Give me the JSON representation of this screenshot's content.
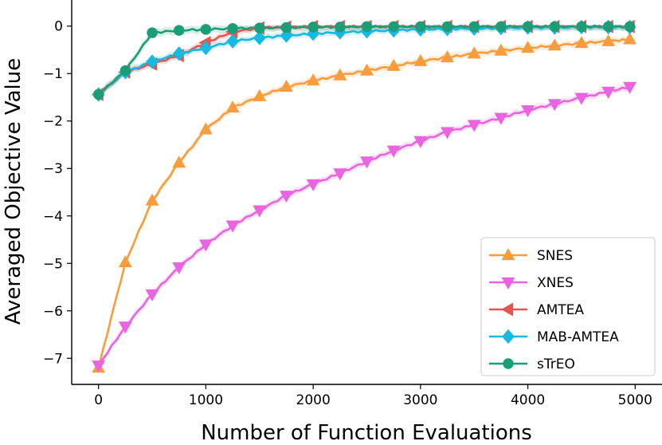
{
  "chart_data": {
    "type": "line",
    "xlabel": "Number of Function Evaluations",
    "ylabel": "Averaged Objective Value",
    "xlim": [
      -250,
      5250
    ],
    "ylim": [
      -7.55,
      0.55
    ],
    "xticks": [
      0,
      1000,
      2000,
      3000,
      4000,
      5000
    ],
    "yticks": [
      0,
      -1,
      -2,
      -3,
      -4,
      -5,
      -6,
      -7
    ],
    "ytick_labels": [
      "0",
      "−1",
      "−2",
      "−3",
      "−4",
      "−5",
      "−6",
      "−7"
    ],
    "grid": false,
    "legend_position": "lower-right",
    "x": [
      0,
      250,
      500,
      750,
      1000,
      1250,
      1500,
      1750,
      2000,
      2250,
      2500,
      2750,
      3000,
      3250,
      3500,
      3750,
      4000,
      4250,
      4500,
      4750,
      4950
    ],
    "series": [
      {
        "name": "SNES",
        "color": "#f89c3c",
        "marker": "triangle-up",
        "values": [
          -7.2,
          -4.98,
          -3.68,
          -2.88,
          -2.18,
          -1.72,
          -1.48,
          -1.28,
          -1.15,
          -1.04,
          -0.94,
          -0.84,
          -0.74,
          -0.66,
          -0.58,
          -0.52,
          -0.46,
          -0.41,
          -0.36,
          -0.32,
          -0.28
        ]
      },
      {
        "name": "XNES",
        "color": "#ea63e0",
        "marker": "triangle-down",
        "values": [
          -7.15,
          -6.33,
          -5.65,
          -5.08,
          -4.6,
          -4.2,
          -3.88,
          -3.57,
          -3.33,
          -3.1,
          -2.85,
          -2.62,
          -2.42,
          -2.23,
          -2.08,
          -1.93,
          -1.77,
          -1.64,
          -1.51,
          -1.38,
          -1.28
        ]
      },
      {
        "name": "AMTEA",
        "color": "#e8534e",
        "marker": "triangle-left",
        "values": [
          -1.44,
          -0.97,
          -0.8,
          -0.62,
          -0.35,
          -0.12,
          -0.04,
          -0.02,
          -0.01,
          -0.01,
          -0.01,
          -0.01,
          -0.01,
          -0.01,
          -0.01,
          -0.01,
          -0.01,
          -0.01,
          -0.01,
          -0.01,
          -0.01
        ]
      },
      {
        "name": "MAB-AMTEA",
        "color": "#16b9e0",
        "marker": "diamond",
        "values": [
          -1.44,
          -0.97,
          -0.75,
          -0.58,
          -0.46,
          -0.32,
          -0.25,
          -0.2,
          -0.16,
          -0.13,
          -0.11,
          -0.09,
          -0.07,
          -0.06,
          -0.05,
          -0.04,
          -0.03,
          -0.03,
          -0.02,
          -0.02,
          -0.02
        ]
      },
      {
        "name": "sTrEO",
        "color": "#1b9e77",
        "marker": "circle",
        "values": [
          -1.44,
          -0.94,
          -0.14,
          -0.09,
          -0.07,
          -0.05,
          -0.04,
          -0.03,
          -0.02,
          -0.02,
          -0.01,
          -0.01,
          -0.01,
          -0.01,
          -0.01,
          -0.01,
          -0.01,
          -0.01,
          -0.01,
          -0.01,
          -0.01
        ]
      }
    ]
  }
}
